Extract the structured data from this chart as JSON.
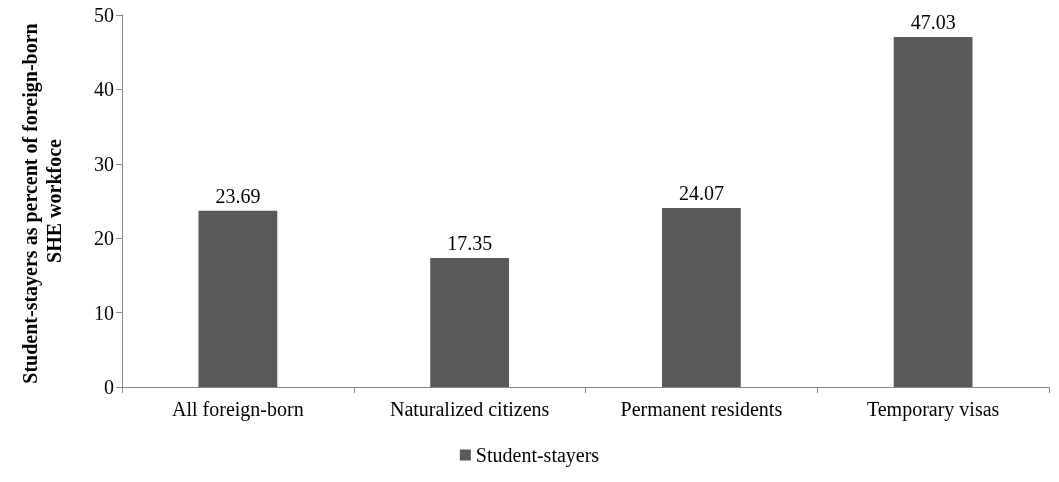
{
  "chart_data": {
    "type": "bar",
    "ylabel": "Student-stayers as percent of foreign-born SHE workfoce",
    "categories": [
      "All foreign-born",
      "Naturalized citizens",
      "Permanent residents",
      "Temporary visas"
    ],
    "series": [
      {
        "name": "Student-stayers",
        "color": "#595959",
        "values": [
          23.69,
          17.35,
          24.07,
          47.03
        ]
      }
    ],
    "ylim": [
      0,
      50
    ],
    "yticks": [
      0,
      10,
      20,
      30,
      40,
      50
    ],
    "grid": false,
    "legend": "bottom",
    "data_labels": true
  }
}
